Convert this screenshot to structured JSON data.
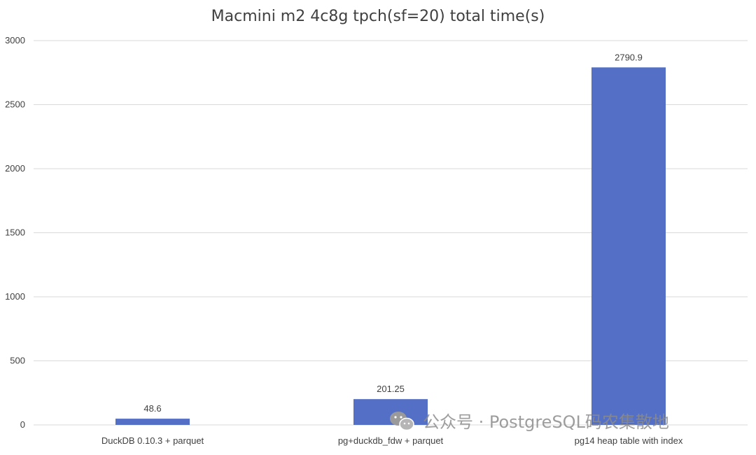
{
  "chart_data": {
    "type": "bar",
    "title": "Macmini m2 4c8g tpch(sf=20) total time(s)",
    "categories": [
      "DuckDB 0.10.3 + parquet",
      "pg+duckdb_fdw + parquet",
      "pg14 heap table with index"
    ],
    "values": [
      48.6,
      201.25,
      2790.9
    ],
    "data_labels": [
      "48.6",
      "201.25",
      "2790.9"
    ],
    "ylim": [
      0,
      3000
    ],
    "yticks": [
      0,
      500,
      1000,
      1500,
      2000,
      2500,
      3000
    ],
    "grid": true,
    "bar_color": "#5470c6"
  },
  "watermark": {
    "icon": "wechat-icon",
    "text": "公众号 · PostgreSQL码农集散地"
  }
}
